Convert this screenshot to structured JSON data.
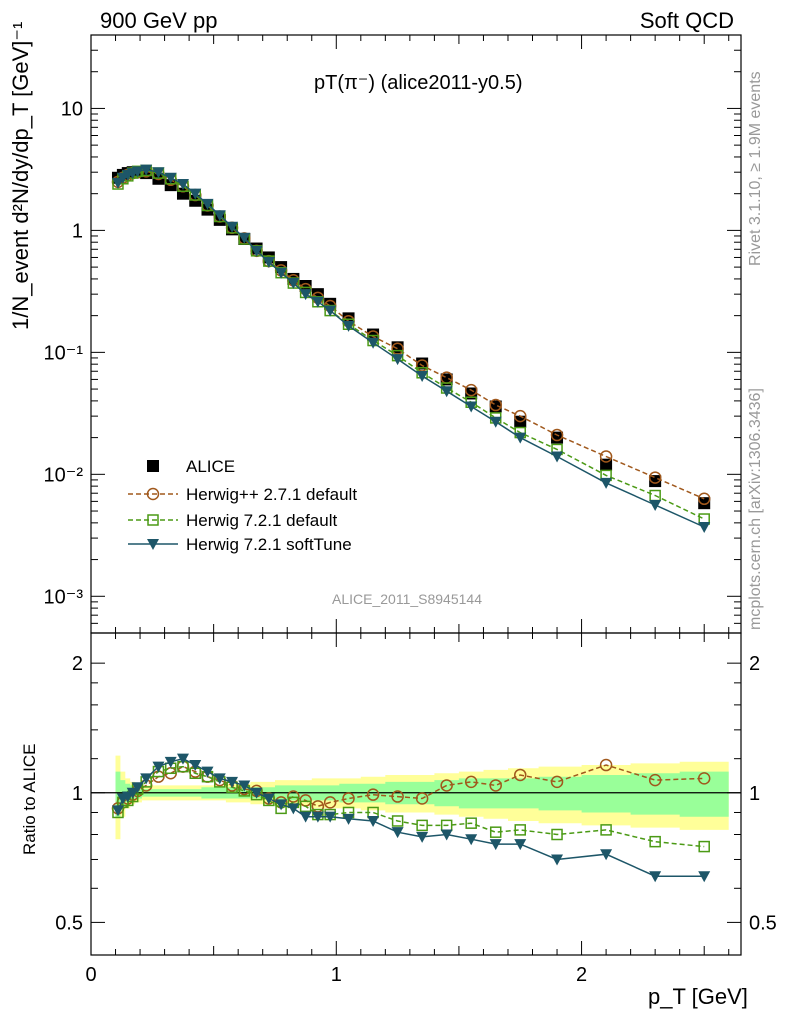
{
  "header": {
    "left": "900 GeV pp",
    "right": "Soft QCD"
  },
  "side_labels": {
    "rivet": "Rivet 3.1.10, ≥ 1.9M events",
    "mcplots": "mcplots.cern.ch [arXiv:1306.3436]"
  },
  "plot_title": "pT(π⁻) (alice2011-y0.5)",
  "analysis_id": "ALICE_2011_S8945144",
  "x_axis_label": "p_T [GeV]",
  "main_y_label": "1/N_event d²N/dy/dp_T [GeV]⁻¹",
  "ratio_y_label": "Ratio to ALICE",
  "legend": {
    "data": "ALICE",
    "herwigpp": "Herwig++ 2.7.1 default",
    "herwig721": "Herwig 7.2.1 default",
    "softtune": "Herwig 7.2.1 softTune"
  },
  "colors": {
    "data": "#000000",
    "herwigpp": "#a0581c",
    "herwig721": "#4b9a15",
    "softtune": "#1d5668",
    "band_yellow": "#ffff99",
    "band_green": "#99ff99"
  },
  "chart_data": {
    "type": "line",
    "x_label": "p_T [GeV]",
    "main": {
      "yscale": "log",
      "ylim": [
        0.0005,
        40
      ],
      "xlim": [
        0,
        2.65
      ],
      "x_ticks": [
        "0",
        "1",
        "2"
      ],
      "y_ticks": [
        "10⁻³",
        "10⁻²",
        "10⁻¹",
        "1",
        "10"
      ]
    },
    "ratio": {
      "yscale": "log",
      "ylim": [
        0.42,
        2.35
      ],
      "y_ticks": [
        "0.5",
        "1",
        "2"
      ]
    },
    "x": [
      0.11,
      0.13,
      0.15,
      0.17,
      0.19,
      0.225,
      0.275,
      0.325,
      0.375,
      0.425,
      0.475,
      0.525,
      0.575,
      0.625,
      0.675,
      0.725,
      0.775,
      0.825,
      0.875,
      0.925,
      0.975,
      1.05,
      1.15,
      1.25,
      1.35,
      1.45,
      1.55,
      1.65,
      1.75,
      1.9,
      2.1,
      2.3,
      2.5
    ],
    "series": [
      {
        "name": "ALICE",
        "marker": "filled-square",
        "values": [
          2.7,
          2.85,
          2.95,
          3.0,
          3.0,
          2.95,
          2.65,
          2.35,
          2.0,
          1.75,
          1.48,
          1.22,
          1.02,
          0.85,
          0.71,
          0.6,
          0.5,
          0.4,
          0.35,
          0.3,
          0.25,
          0.19,
          0.14,
          0.11,
          0.081,
          0.06,
          0.046,
          0.036,
          0.027,
          0.02,
          0.012,
          0.0088,
          0.0058
        ],
        "band_yellow": [
          0.22,
          0.12,
          0.08,
          0.06,
          0.05,
          0.04,
          0.04,
          0.04,
          0.04,
          0.04,
          0.04,
          0.04,
          0.05,
          0.05,
          0.06,
          0.06,
          0.07,
          0.07,
          0.07,
          0.08,
          0.08,
          0.08,
          0.09,
          0.1,
          0.1,
          0.11,
          0.12,
          0.13,
          0.14,
          0.15,
          0.16,
          0.17,
          0.18
        ],
        "band_green": [
          0.12,
          0.07,
          0.05,
          0.04,
          0.03,
          0.02,
          0.02,
          0.02,
          0.02,
          0.02,
          0.03,
          0.03,
          0.03,
          0.03,
          0.03,
          0.03,
          0.04,
          0.04,
          0.04,
          0.04,
          0.04,
          0.05,
          0.05,
          0.06,
          0.06,
          0.07,
          0.08,
          0.08,
          0.08,
          0.09,
          0.1,
          0.11,
          0.12
        ]
      },
      {
        "name": "Herwig++ 2.7.1 default",
        "marker": "open-circle",
        "line": "dashed",
        "values": [
          2.5,
          2.7,
          2.85,
          2.95,
          3.0,
          3.05,
          2.9,
          2.6,
          2.3,
          1.95,
          1.6,
          1.3,
          1.05,
          0.86,
          0.68,
          0.56,
          0.47,
          0.39,
          0.33,
          0.28,
          0.24,
          0.18,
          0.135,
          0.107,
          0.078,
          0.062,
          0.049,
          0.037,
          0.03,
          0.021,
          0.014,
          0.0094,
          0.0063
        ],
        "ratio": [
          0.92,
          0.95,
          0.97,
          0.99,
          1.01,
          1.04,
          1.09,
          1.11,
          1.15,
          1.12,
          1.09,
          1.07,
          1.04,
          1.02,
          1.01,
          0.97,
          0.95,
          0.98,
          0.96,
          0.93,
          0.95,
          0.97,
          0.99,
          0.98,
          0.97,
          1.04,
          1.06,
          1.04,
          1.1,
          1.06,
          1.16,
          1.07,
          1.08
        ]
      },
      {
        "name": "Herwig 7.2.1 default",
        "marker": "open-square",
        "line": "dashed",
        "values": [
          2.4,
          2.65,
          2.8,
          2.95,
          3.05,
          3.1,
          2.95,
          2.65,
          2.3,
          1.95,
          1.6,
          1.3,
          1.05,
          0.85,
          0.68,
          0.56,
          0.45,
          0.37,
          0.31,
          0.26,
          0.22,
          0.17,
          0.125,
          0.094,
          0.068,
          0.051,
          0.039,
          0.029,
          0.022,
          0.016,
          0.0098,
          0.0067,
          0.0043
        ],
        "ratio": [
          0.9,
          0.95,
          0.96,
          0.98,
          1.02,
          1.06,
          1.12,
          1.14,
          1.15,
          1.11,
          1.09,
          1.06,
          1.03,
          1.01,
          0.99,
          0.96,
          0.92,
          0.95,
          0.93,
          0.89,
          0.89,
          0.9,
          0.9,
          0.86,
          0.84,
          0.84,
          0.85,
          0.81,
          0.82,
          0.8,
          0.82,
          0.77,
          0.75
        ]
      },
      {
        "name": "Herwig 7.2.1 softTune",
        "marker": "filled-triangle-down",
        "line": "solid",
        "values": [
          2.45,
          2.7,
          2.85,
          2.95,
          3.05,
          3.15,
          3.0,
          2.7,
          2.4,
          2.0,
          1.65,
          1.33,
          1.07,
          0.87,
          0.68,
          0.55,
          0.45,
          0.37,
          0.3,
          0.26,
          0.22,
          0.165,
          0.12,
          0.088,
          0.064,
          0.048,
          0.036,
          0.027,
          0.02,
          0.014,
          0.0085,
          0.0056,
          0.0037
        ],
        "ratio": [
          0.91,
          0.97,
          0.98,
          1.0,
          1.03,
          1.08,
          1.15,
          1.18,
          1.2,
          1.16,
          1.12,
          1.08,
          1.06,
          1.04,
          1.0,
          0.97,
          0.94,
          0.92,
          0.88,
          0.88,
          0.88,
          0.87,
          0.86,
          0.81,
          0.79,
          0.8,
          0.78,
          0.76,
          0.76,
          0.7,
          0.72,
          0.64,
          0.64
        ]
      }
    ]
  }
}
